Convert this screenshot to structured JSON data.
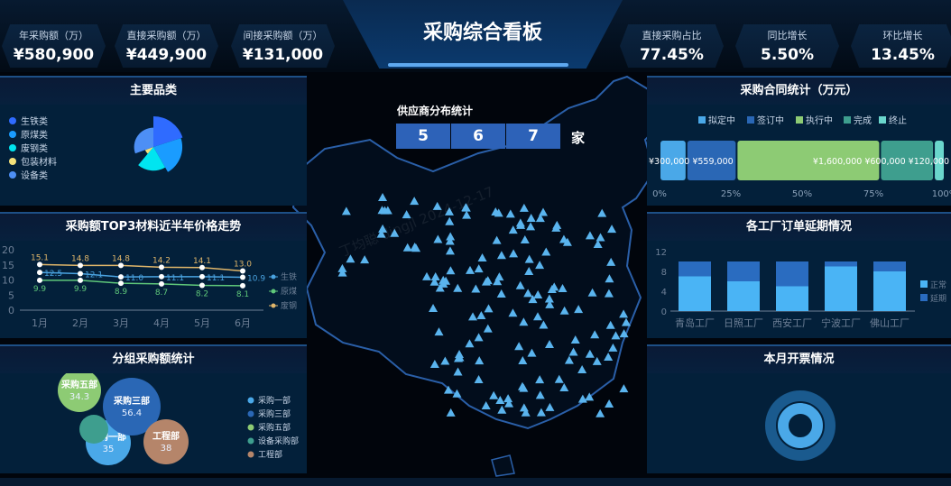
{
  "header": {
    "title": "采购综合看板"
  },
  "kpis": [
    {
      "label": "年采购额（万）",
      "value": "¥580,900"
    },
    {
      "label": "直接采购额（万）",
      "value": "¥449,900"
    },
    {
      "label": "间接采购额（万）",
      "value": "¥131,000"
    },
    {
      "label": "直接采购占比",
      "value": "77.45%"
    },
    {
      "label": "同比增长",
      "value": "5.50%"
    },
    {
      "label": "环比增长",
      "value": "13.45%"
    }
  ],
  "category": {
    "title": "主要品类",
    "items": [
      {
        "name": "生铁类",
        "value": 35,
        "color": "#2f6bff"
      },
      {
        "name": "原煤类",
        "value": 33,
        "color": "#1a9cff"
      },
      {
        "name": "废钢类",
        "value": 27,
        "color": "#00e5f0"
      },
      {
        "name": "包装材料",
        "value": 10,
        "color": "#f5e27a"
      },
      {
        "name": "设备类",
        "value": 22,
        "color": "#4d8ff5"
      }
    ]
  },
  "chart_data": [
    {
      "type": "line",
      "title": "采购额TOP3材料近半年价格走势",
      "categories": [
        "1月",
        "2月",
        "3月",
        "4月",
        "5月",
        "6月"
      ],
      "ylim": [
        0,
        20
      ],
      "yticks": [
        0,
        5,
        10,
        15,
        20
      ],
      "series": [
        {
          "name": "生铁",
          "values": [
            12.5,
            12.1,
            11.0,
            11.1,
            11.1,
            10.9
          ],
          "color": "#4aa3e0"
        },
        {
          "name": "原煤",
          "values": [
            9.9,
            9.9,
            8.9,
            8.7,
            8.2,
            8.1
          ],
          "color": "#5fc87a"
        },
        {
          "name": "废钢",
          "values": [
            15.1,
            14.8,
            14.8,
            14.2,
            14.1,
            13.0
          ],
          "color": "#e0b66a"
        }
      ]
    },
    {
      "type": "bar",
      "title": "各工厂订单延期情况",
      "categories": [
        "青岛工厂",
        "日照工厂",
        "西安工厂",
        "宁波工厂",
        "佛山工厂"
      ],
      "ylim": [
        0,
        12
      ],
      "yticks": [
        0,
        4,
        8,
        12
      ],
      "series": [
        {
          "name": "正常",
          "values": [
            7,
            6,
            5,
            9,
            8
          ],
          "color": "#4ab4f5"
        },
        {
          "name": "延期",
          "values": [
            3,
            4,
            5,
            1,
            2
          ],
          "color": "#2a6cc0"
        }
      ]
    },
    {
      "type": "bar",
      "title": "采购合同统计（万元）",
      "stacked_percent": true,
      "xticks": [
        "0%",
        "25%",
        "50%",
        "75%",
        "100%"
      ],
      "series": [
        {
          "name": "拟定中",
          "value": 300000,
          "label": "¥300,000",
          "color": "#4aa8e8"
        },
        {
          "name": "签订中",
          "value": 559000,
          "label": "¥559,000",
          "color": "#2a67b5"
        },
        {
          "name": "执行中",
          "value": 1600000,
          "label": "¥1,600,000",
          "color": "#8dcb74"
        },
        {
          "name": "完成",
          "value": 600000,
          "label": "¥600,000",
          "color": "#3e9e8e"
        },
        {
          "name": "终止",
          "value": 120000,
          "label": "¥120,000",
          "color": "#6ad6cc"
        }
      ]
    }
  ],
  "groups": {
    "title": "分组采购额统计",
    "items": [
      {
        "name": "采购一部",
        "value": "35",
        "color": "#4aa8e8"
      },
      {
        "name": "采购三部",
        "value": "56.4",
        "color": "#2a67b5"
      },
      {
        "name": "采购五部",
        "value": "34.3",
        "color": "#8dcb74"
      },
      {
        "name": "设备采购部",
        "value": "",
        "color": "#3e9e8e"
      },
      {
        "name": "工程部",
        "value": "38",
        "color": "#b5856a"
      }
    ]
  },
  "supplier": {
    "title": "供应商分布统计",
    "digits": [
      "5",
      "6",
      "7"
    ],
    "unit": "家"
  },
  "invoice": {
    "title": "本月开票情况"
  },
  "watermark": "丁均聪 dingjl 2024-12-17"
}
